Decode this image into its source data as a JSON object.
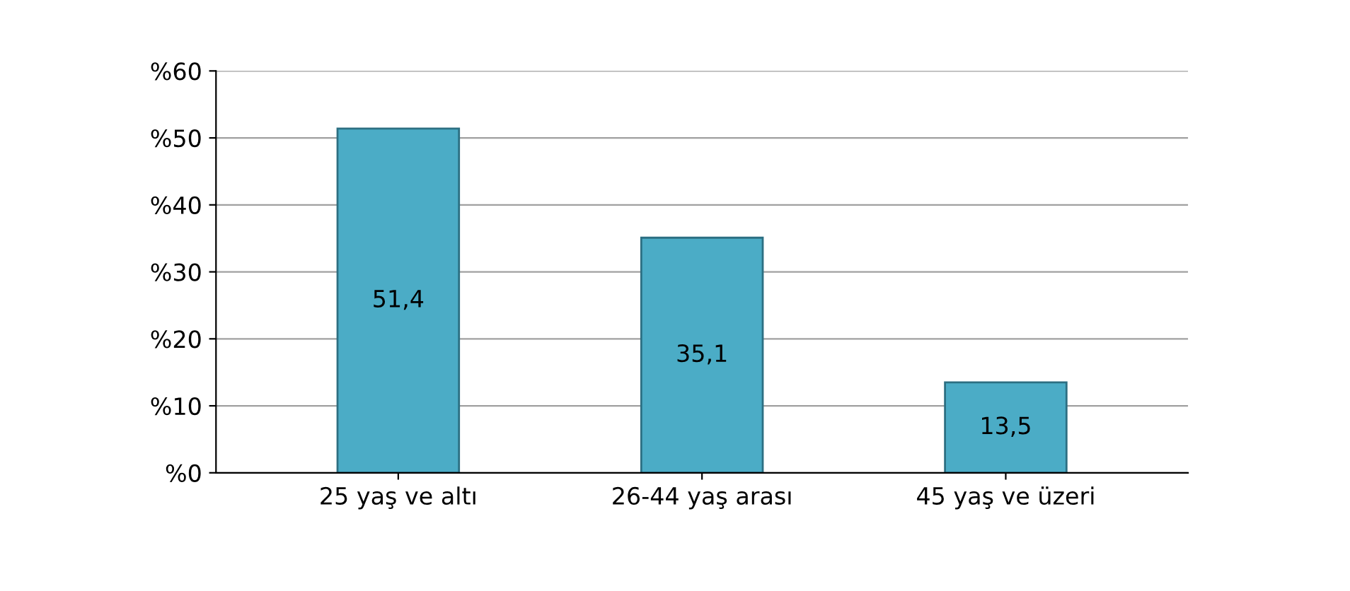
{
  "chart_data": {
    "type": "bar",
    "categories": [
      "25 yaş ve altı",
      "26-44 yaş arası",
      "45 yaş ve üzeri"
    ],
    "values": [
      51.4,
      35.1,
      13.5
    ],
    "value_labels": [
      "51,4",
      "35,1",
      "13,5"
    ],
    "color": "#4bacc6",
    "ylim": [
      0,
      60
    ],
    "yticks": [
      {
        "value": 0,
        "label": "%0"
      },
      {
        "value": 10,
        "label": "%10"
      },
      {
        "value": 20,
        "label": "%20"
      },
      {
        "value": 30,
        "label": "%30"
      },
      {
        "value": 40,
        "label": "%40"
      },
      {
        "value": 50,
        "label": "%50"
      },
      {
        "value": 60,
        "label": "%60"
      }
    ],
    "grid": "y"
  }
}
